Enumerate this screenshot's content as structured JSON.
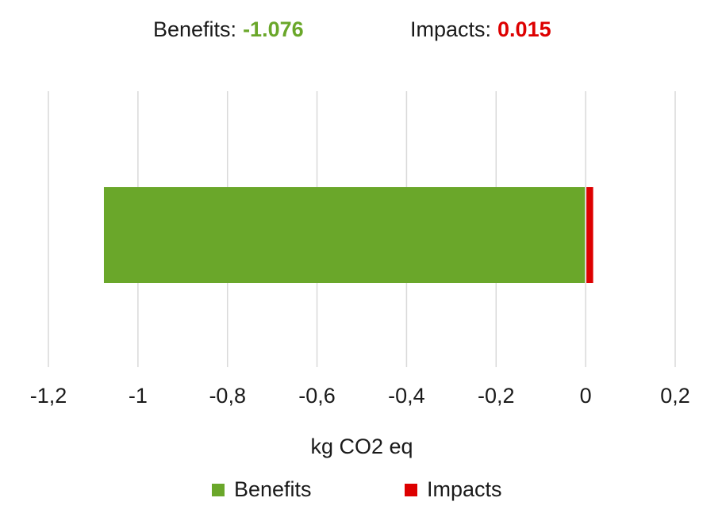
{
  "summary": {
    "benefits_label": "Benefits:",
    "benefits_value": "-1.076",
    "impacts_label": "Impacts:",
    "impacts_value": "0.015"
  },
  "colors": {
    "benefits": "#6aa72a",
    "impacts": "#dd0000",
    "grid": "#d9d9d9",
    "text": "#1a1a1a"
  },
  "chart_data": {
    "type": "bar",
    "orientation": "horizontal",
    "stacked": true,
    "categories": [
      ""
    ],
    "series": [
      {
        "name": "Benefits",
        "values": [
          -1.076
        ],
        "color": "#6aa72a"
      },
      {
        "name": "Impacts",
        "values": [
          0.015
        ],
        "color": "#dd0000"
      }
    ],
    "xlabel": "kg CO2 eq",
    "xlim": [
      -1.2,
      0.2
    ],
    "xticks": [
      -1.2,
      -1,
      -0.8,
      -0.6,
      -0.4,
      -0.2,
      0,
      0.2
    ],
    "xtick_labels": [
      "-1,2",
      "-1",
      "-0,8",
      "-0,6",
      "-0,4",
      "-0,2",
      "0",
      "0,2"
    ],
    "grid": true,
    "legend": {
      "position": "bottom",
      "entries": [
        "Benefits",
        "Impacts"
      ]
    }
  }
}
